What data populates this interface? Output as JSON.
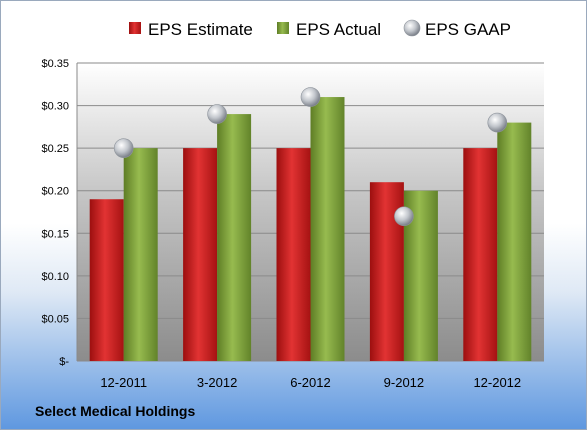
{
  "company": "Select Medical Holdings",
  "colors": {
    "estimate": "#cc1a1a",
    "actual": "#7fa23a",
    "gaap": "#b7bcc4"
  },
  "chart_data": {
    "type": "bar",
    "categories": [
      "12-2011",
      "3-2012",
      "6-2012",
      "9-2012",
      "12-2012"
    ],
    "series": [
      {
        "name": "EPS Estimate",
        "values": [
          0.19,
          0.25,
          0.25,
          0.21,
          0.25
        ]
      },
      {
        "name": "EPS Actual",
        "values": [
          0.25,
          0.29,
          0.31,
          0.2,
          0.28
        ]
      },
      {
        "name": "EPS GAAP",
        "type": "scatter",
        "values": [
          0.25,
          0.29,
          0.31,
          0.17,
          0.28
        ]
      }
    ],
    "ylim": [
      0,
      0.35
    ],
    "yticks": [
      0,
      0.05,
      0.1,
      0.15,
      0.2,
      0.25,
      0.3,
      0.35
    ],
    "ytick_labels": [
      "$-",
      "$0.05",
      "$0.10",
      "$0.15",
      "$0.20",
      "$0.25",
      "$0.30",
      "$0.35"
    ],
    "grid": true,
    "legend": "top"
  }
}
